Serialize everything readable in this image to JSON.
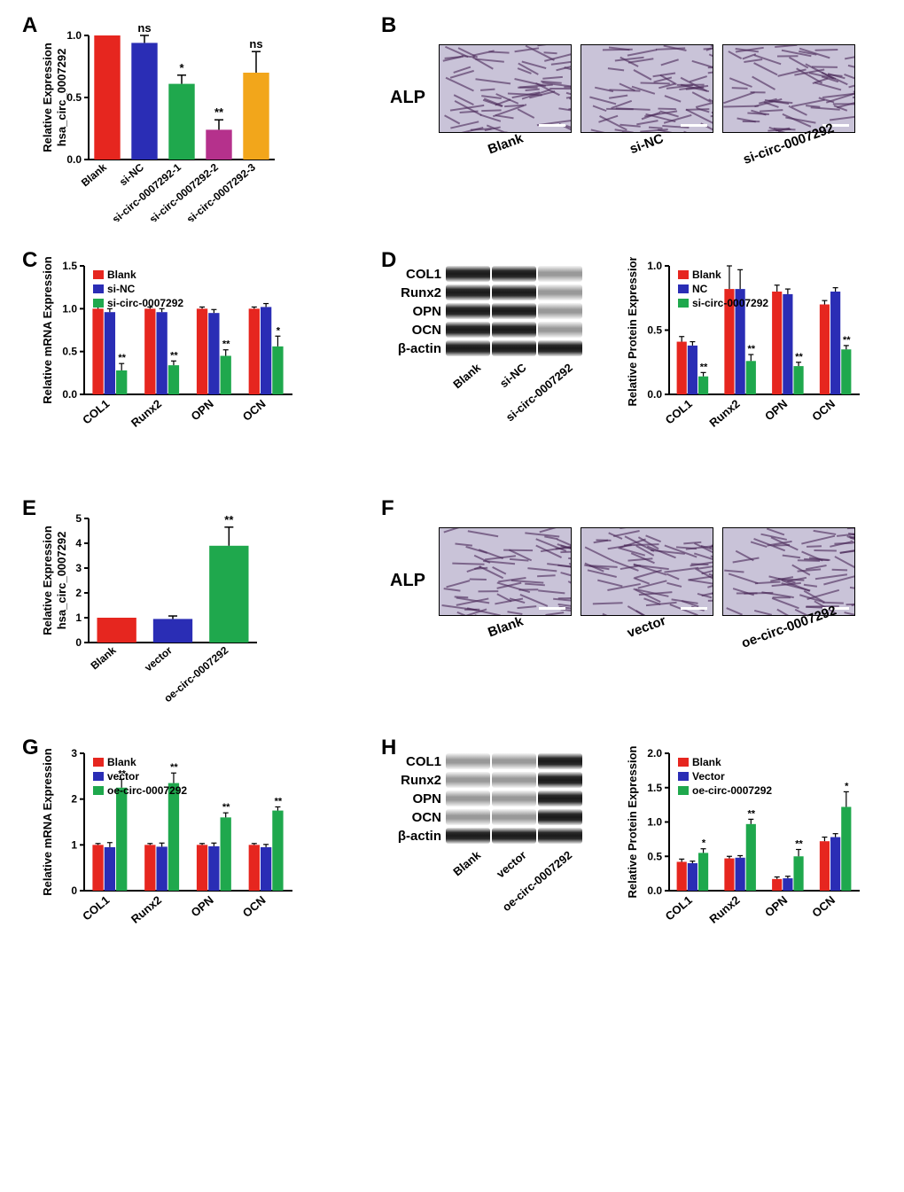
{
  "colors": {
    "red": "#e6261f",
    "blue": "#2a2db5",
    "green": "#1fa84d",
    "magenta": "#b5318c",
    "orange": "#f2a61b",
    "axis": "#000000"
  },
  "panels": {
    "A": {
      "letter": "A",
      "ylabel_line1": "Relative Expression",
      "ylabel_line2": "hsa_circ_0007292",
      "ylim": [
        0,
        1.0
      ],
      "ytick_step": 0.5,
      "categories": [
        "Blank",
        "si-NC",
        "si-circ-0007292-1",
        "si-circ-0007292-2",
        "si-circ-0007292-3"
      ],
      "values": [
        1.0,
        0.94,
        0.61,
        0.24,
        0.7
      ],
      "errors": [
        0,
        0.06,
        0.07,
        0.08,
        0.17
      ],
      "sig": [
        "",
        "ns",
        "*",
        "**",
        "ns"
      ],
      "bar_colors": [
        "#e6261f",
        "#2a2db5",
        "#1fa84d",
        "#b5318c",
        "#f2a61b"
      ]
    },
    "B": {
      "letter": "B",
      "row_label": "ALP",
      "images": [
        "Blank",
        "si-NC",
        "si-circ-0007292"
      ]
    },
    "C": {
      "letter": "C",
      "ylabel": "Relative mRNA Expression",
      "ylim": [
        0,
        1.5
      ],
      "ytick_step": 0.5,
      "groups": [
        "COL1",
        "Runx2",
        "OPN",
        "OCN"
      ],
      "legend": [
        {
          "label": "Blank",
          "color": "#e6261f"
        },
        {
          "label": "si-NC",
          "color": "#2a2db5"
        },
        {
          "label": "si-circ-0007292",
          "color": "#1fa84d"
        }
      ],
      "series": {
        "Blank": {
          "values": [
            1.0,
            1.0,
            1.0,
            1.0
          ],
          "errors": [
            0.02,
            0.02,
            0.02,
            0.02
          ]
        },
        "si-NC": {
          "values": [
            0.96,
            0.96,
            0.95,
            1.02
          ],
          "errors": [
            0.04,
            0.04,
            0.04,
            0.04
          ]
        },
        "si-circ-0007292": {
          "values": [
            0.28,
            0.34,
            0.45,
            0.56
          ],
          "errors": [
            0.08,
            0.05,
            0.07,
            0.12
          ],
          "sig": [
            "**",
            "**",
            "**",
            "*"
          ]
        }
      }
    },
    "D": {
      "letter": "D",
      "proteins": [
        "COL1",
        "Runx2",
        "OPN",
        "OCN",
        "β-actin"
      ],
      "lanes": [
        "Blank",
        "si-NC",
        "si-circ-0007292"
      ],
      "band_intensity": {
        "COL1": [
          "dark",
          "dark",
          "light"
        ],
        "Runx2": [
          "dark",
          "dark",
          "light"
        ],
        "OPN": [
          "dark",
          "dark",
          "light"
        ],
        "OCN": [
          "dark",
          "dark",
          "light"
        ],
        "β-actin": [
          "dark",
          "dark",
          "dark"
        ]
      },
      "chart": {
        "ylabel": "Relative Protein Expression",
        "ylim": [
          0,
          1.0
        ],
        "ytick_step": 0.5,
        "groups": [
          "COL1",
          "Runx2",
          "OPN",
          "OCN"
        ],
        "legend": [
          {
            "label": "Blank",
            "color": "#e6261f"
          },
          {
            "label": "NC",
            "color": "#2a2db5"
          },
          {
            "label": "si-circ-0007292",
            "color": "#1fa84d"
          }
        ],
        "series": {
          "Blank": {
            "values": [
              0.41,
              0.82,
              0.8,
              0.7
            ],
            "errors": [
              0.04,
              0.18,
              0.05,
              0.03
            ]
          },
          "NC": {
            "values": [
              0.38,
              0.82,
              0.78,
              0.8
            ],
            "errors": [
              0.03,
              0.15,
              0.04,
              0.03
            ]
          },
          "si-circ-0007292": {
            "values": [
              0.14,
              0.26,
              0.22,
              0.35
            ],
            "errors": [
              0.03,
              0.05,
              0.03,
              0.03
            ],
            "sig": [
              "**",
              "**",
              "**",
              "**"
            ]
          }
        }
      }
    },
    "E": {
      "letter": "E",
      "ylabel_line1": "Relative Expression",
      "ylabel_line2": "hsa_circ_0007292",
      "ylim": [
        0,
        5
      ],
      "ytick_step": 1,
      "categories": [
        "Blank",
        "vector",
        "oe-circ-0007292"
      ],
      "values": [
        1.0,
        0.95,
        3.9
      ],
      "errors": [
        0,
        0.12,
        0.75
      ],
      "sig": [
        "",
        "",
        "**"
      ],
      "bar_colors": [
        "#e6261f",
        "#2a2db5",
        "#1fa84d"
      ]
    },
    "F": {
      "letter": "F",
      "row_label": "ALP",
      "images": [
        "Blank",
        "vector",
        "oe-circ-0007292"
      ]
    },
    "G": {
      "letter": "G",
      "ylabel": "Relative mRNA Expression",
      "ylim": [
        0,
        3
      ],
      "ytick_step": 1,
      "groups": [
        "COL1",
        "Runx2",
        "OPN",
        "OCN"
      ],
      "legend": [
        {
          "label": "Blank",
          "color": "#e6261f"
        },
        {
          "label": "vector",
          "color": "#2a2db5"
        },
        {
          "label": "oe-circ-0007292",
          "color": "#1fa84d"
        }
      ],
      "series": {
        "Blank": {
          "values": [
            1.0,
            1.0,
            1.0,
            1.0
          ],
          "errors": [
            0.03,
            0.03,
            0.03,
            0.03
          ]
        },
        "vector": {
          "values": [
            0.95,
            0.96,
            0.97,
            0.95
          ],
          "errors": [
            0.1,
            0.08,
            0.07,
            0.06
          ]
        },
        "oe-circ-0007292": {
          "values": [
            2.25,
            2.35,
            1.6,
            1.75
          ],
          "errors": [
            0.18,
            0.22,
            0.1,
            0.08
          ],
          "sig": [
            "**",
            "**",
            "**",
            "**"
          ]
        }
      }
    },
    "H": {
      "letter": "H",
      "proteins": [
        "COL1",
        "Runx2",
        "OPN",
        "OCN",
        "β-actin"
      ],
      "lanes": [
        "Blank",
        "vector",
        "oe-circ-0007292"
      ],
      "band_intensity": {
        "COL1": [
          "light",
          "light",
          "dark"
        ],
        "Runx2": [
          "light",
          "light",
          "dark"
        ],
        "OPN": [
          "light",
          "light",
          "dark"
        ],
        "OCN": [
          "light",
          "light",
          "dark"
        ],
        "β-actin": [
          "dark",
          "dark",
          "dark"
        ]
      },
      "chart": {
        "ylabel": "Relative Protein Expression",
        "ylim": [
          0,
          2.0
        ],
        "ytick_step": 0.5,
        "groups": [
          "COL1",
          "Runx2",
          "OPN",
          "OCN"
        ],
        "legend": [
          {
            "label": "Blank",
            "color": "#e6261f"
          },
          {
            "label": "Vector",
            "color": "#2a2db5"
          },
          {
            "label": "oe-circ-0007292",
            "color": "#1fa84d"
          }
        ],
        "series": {
          "Blank": {
            "values": [
              0.42,
              0.47,
              0.17,
              0.72
            ],
            "errors": [
              0.04,
              0.03,
              0.03,
              0.06
            ]
          },
          "Vector": {
            "values": [
              0.4,
              0.48,
              0.18,
              0.78
            ],
            "errors": [
              0.03,
              0.03,
              0.03,
              0.05
            ]
          },
          "oe-circ-0007292": {
            "values": [
              0.55,
              0.97,
              0.5,
              1.22
            ],
            "errors": [
              0.06,
              0.07,
              0.1,
              0.22
            ],
            "sig": [
              "*",
              "**",
              "**",
              "*"
            ]
          }
        }
      }
    }
  }
}
